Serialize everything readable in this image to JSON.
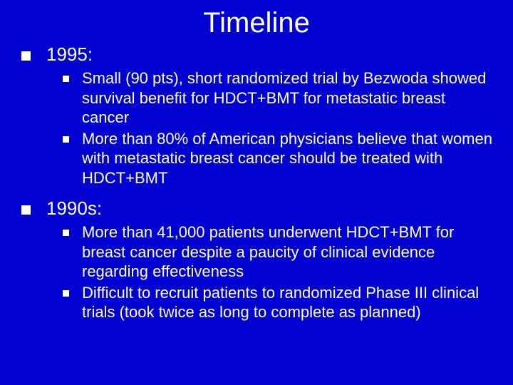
{
  "slide": {
    "background_color": "#0000d0",
    "text_color": "#ffffff",
    "font_family": "Verdana, Tahoma, Arial, sans-serif",
    "title": {
      "text": "Timeline",
      "fontsize": 40
    },
    "bullets": {
      "level1_fontsize": 26,
      "level2_fontsize": 22,
      "bullet_shape": "square",
      "bullet_color": "#ffffff",
      "l1_bullet_size": 13,
      "l2_bullet_size": 9
    },
    "sections": [
      {
        "heading": "1995:",
        "items": [
          "Small (90 pts), short randomized trial by Bezwoda showed survival benefit for HDCT+BMT for metastatic breast cancer",
          "More than 80% of American physicians believe that women with metastatic breast cancer should be treated with HDCT+BMT"
        ]
      },
      {
        "heading": "1990s:",
        "items": [
          "More than 41,000 patients underwent HDCT+BMT for breast cancer despite a paucity of clinical evidence regarding effectiveness",
          "Difficult to recruit patients to randomized Phase III clinical trials (took twice as long to complete as planned)"
        ]
      }
    ]
  }
}
